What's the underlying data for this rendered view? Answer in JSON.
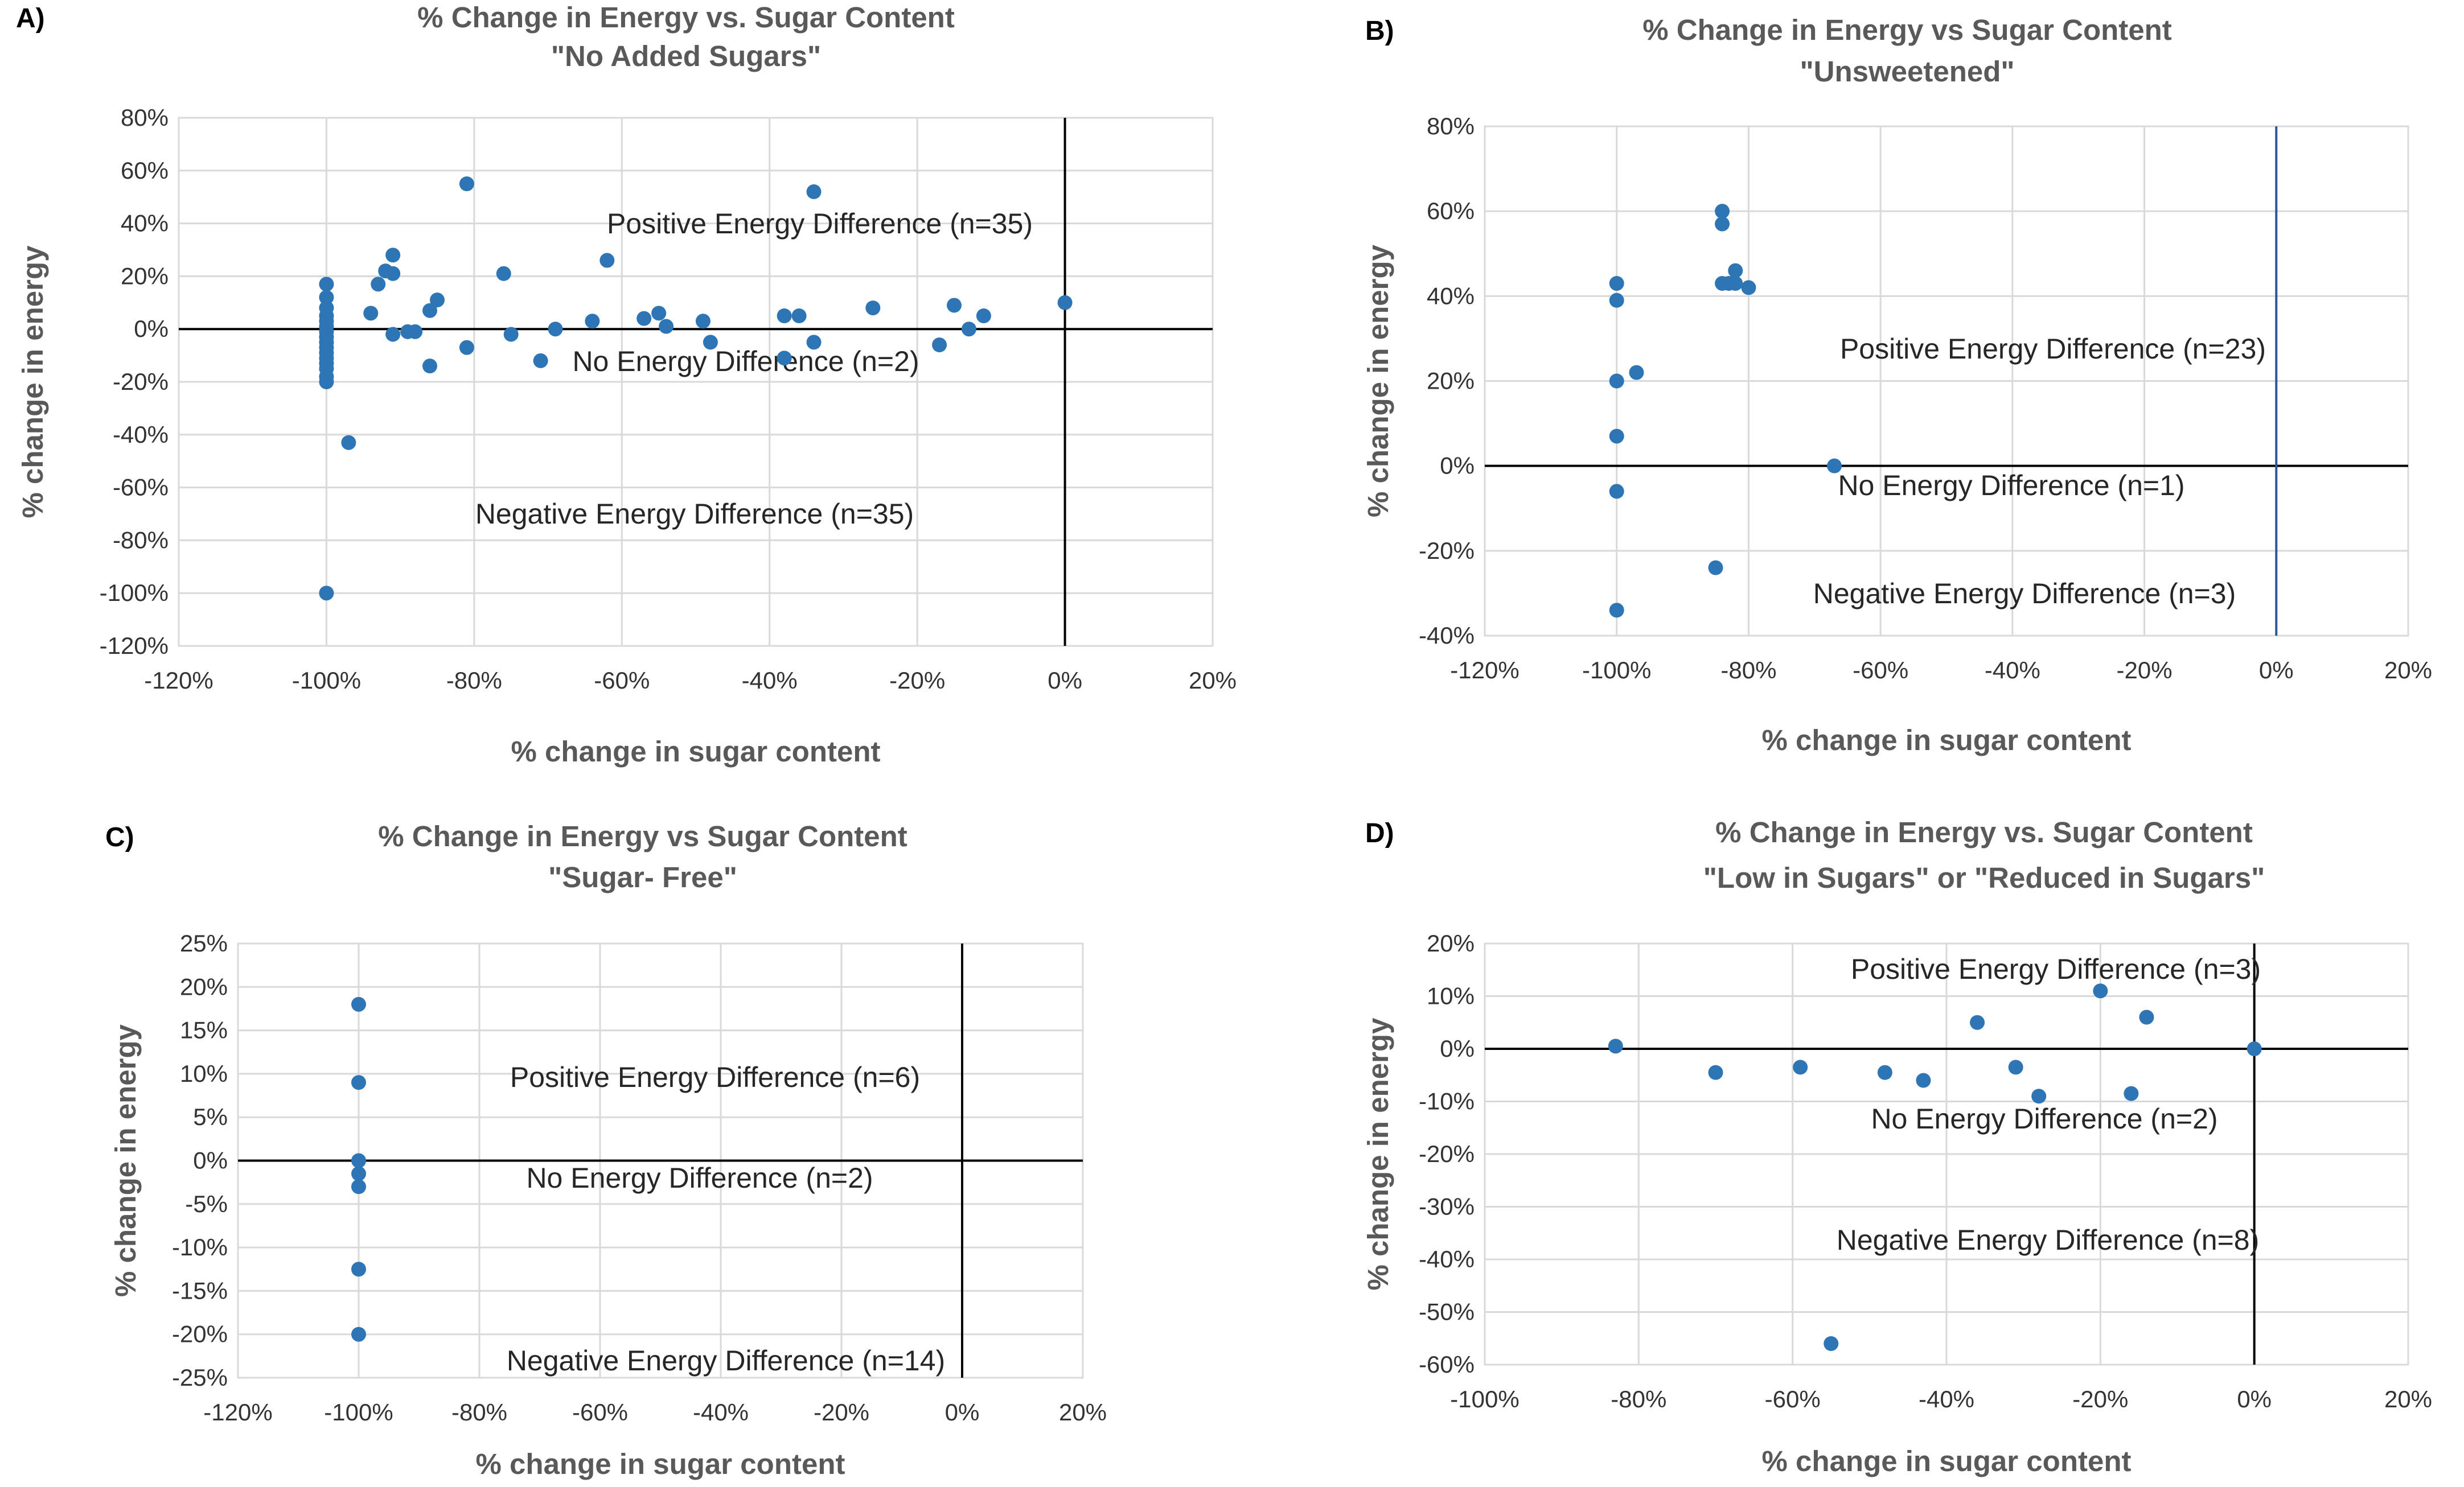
{
  "colors": {
    "marker": "#2e75b6",
    "grid": "#d9d9d9",
    "zero_line": "#000000",
    "zero_line_b_vertical": "#2f5597"
  },
  "chart_data": [
    {
      "panel": "A)",
      "type": "scatter",
      "title": [
        "% Change in Energy vs. Sugar Content",
        "\"No Added Sugars\""
      ],
      "xlabel": "% change in sugar content",
      "ylabel": "% change in energy",
      "xlim": [
        -120,
        20
      ],
      "x_step": 20,
      "ylim": [
        -120,
        80
      ],
      "y_step": 20,
      "annotations": [
        "Positive Energy Difference (n=35)",
        "No Energy Difference (n=2)",
        "Negative Energy Difference (n=35)"
      ],
      "points": [
        [
          -100,
          17
        ],
        [
          -100,
          12
        ],
        [
          -100,
          8
        ],
        [
          -100,
          5
        ],
        [
          -100,
          3
        ],
        [
          -100,
          1
        ],
        [
          -100,
          -1
        ],
        [
          -100,
          -3
        ],
        [
          -100,
          -5
        ],
        [
          -100,
          -7
        ],
        [
          -100,
          -9
        ],
        [
          -100,
          -11
        ],
        [
          -100,
          -13
        ],
        [
          -100,
          -15
        ],
        [
          -100,
          -18
        ],
        [
          -100,
          -20
        ],
        [
          -100,
          -100
        ],
        [
          -97,
          -43
        ],
        [
          -94,
          6
        ],
        [
          -93,
          17
        ],
        [
          -92,
          22
        ],
        [
          -91,
          -2
        ],
        [
          -91,
          28
        ],
        [
          -91,
          21
        ],
        [
          -89,
          -1
        ],
        [
          -88,
          -1
        ],
        [
          -86,
          7
        ],
        [
          -86,
          -14
        ],
        [
          -85,
          11
        ],
        [
          -81,
          55
        ],
        [
          -81,
          -7
        ],
        [
          -76,
          21
        ],
        [
          -75,
          -2
        ],
        [
          -71,
          -12
        ],
        [
          -69,
          0
        ],
        [
          -64,
          3
        ],
        [
          -62,
          26
        ],
        [
          -57,
          4
        ],
        [
          -55,
          6
        ],
        [
          -54,
          1
        ],
        [
          -49,
          3
        ],
        [
          -48,
          -5
        ],
        [
          -38,
          5
        ],
        [
          -38,
          -11
        ],
        [
          -36,
          5
        ],
        [
          -34,
          52
        ],
        [
          -34,
          -5
        ],
        [
          -26,
          8
        ],
        [
          -17,
          -6
        ],
        [
          -15,
          9
        ],
        [
          -13,
          0
        ],
        [
          -11,
          5
        ],
        [
          0,
          10
        ]
      ]
    },
    {
      "panel": "B)",
      "type": "scatter",
      "title": [
        "% Change in Energy vs Sugar Content",
        "\"Unsweetened\""
      ],
      "xlabel": "% change in sugar content",
      "ylabel": "% change in energy",
      "xlim": [
        -120,
        20
      ],
      "x_step": 20,
      "ylim": [
        -40,
        80
      ],
      "y_step": 20,
      "annotations": [
        "Positive Energy Difference (n=23)",
        "No Energy Difference (n=1)",
        "Negative Energy Difference (n=3)"
      ],
      "points": [
        [
          -100,
          43
        ],
        [
          -100,
          39
        ],
        [
          -100,
          20
        ],
        [
          -100,
          7
        ],
        [
          -100,
          -6
        ],
        [
          -100,
          -34
        ],
        [
          -97,
          22
        ],
        [
          -84,
          60
        ],
        [
          -84,
          57
        ],
        [
          -84,
          43
        ],
        [
          -83,
          43
        ],
        [
          -82,
          46
        ],
        [
          -82,
          43
        ],
        [
          -80,
          42
        ],
        [
          -85,
          -24
        ],
        [
          -67,
          0
        ]
      ]
    },
    {
      "panel": "C)",
      "type": "scatter",
      "title": [
        "% Change in Energy vs Sugar Content",
        "\"Sugar- Free\""
      ],
      "xlabel": "% change in sugar content",
      "ylabel": "% change in energy",
      "xlim": [
        -120,
        20
      ],
      "x_step": 20,
      "ylim": [
        -25,
        25
      ],
      "y_step": 5,
      "annotations": [
        "Positive Energy Difference (n=6)",
        "No Energy Difference (n=2)",
        "Negative Energy Difference (n=14)"
      ],
      "points": [
        [
          -100,
          18
        ],
        [
          -100,
          9
        ],
        [
          -100,
          0
        ],
        [
          -100,
          -1.5
        ],
        [
          -100,
          -3
        ],
        [
          -100,
          -12.5
        ],
        [
          -100,
          -20
        ]
      ]
    },
    {
      "panel": "D)",
      "type": "scatter",
      "title": [
        "% Change in Energy vs. Sugar Content",
        "\"Low in Sugars\" or \"Reduced in Sugars\""
      ],
      "xlabel": "% change in sugar content",
      "ylabel": "% change in energy",
      "xlim": [
        -100,
        20
      ],
      "x_step": 20,
      "ylim": [
        -60,
        20
      ],
      "y_step": 10,
      "annotations": [
        "Positive Energy Difference (n=3)",
        "No Energy Difference (n=2)",
        "Negative Energy Difference (n=8)"
      ],
      "points": [
        [
          -83,
          0.5
        ],
        [
          -70,
          -4.5
        ],
        [
          -59,
          -3.5
        ],
        [
          -48,
          -4.5
        ],
        [
          -43,
          -6
        ],
        [
          -36,
          5
        ],
        [
          -31,
          -3.5
        ],
        [
          -28,
          -9
        ],
        [
          -20,
          11
        ],
        [
          -16,
          -8.5
        ],
        [
          -14,
          6
        ],
        [
          0,
          0
        ],
        [
          -55,
          -56
        ]
      ]
    }
  ]
}
